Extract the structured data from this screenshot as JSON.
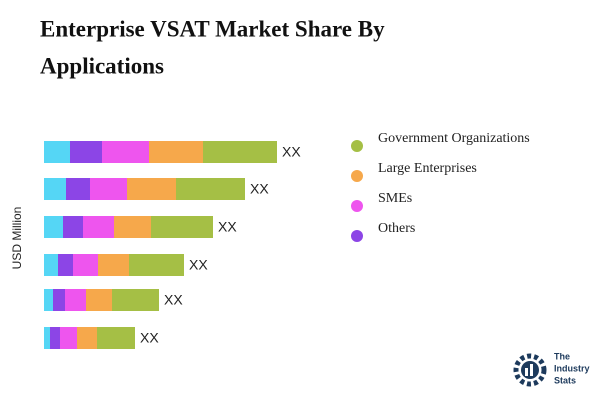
{
  "chart_data": {
    "type": "stacked-bar-horizontal",
    "title": [
      "Enterprise VSAT Market Share By",
      "Applications"
    ],
    "y_label": "USD Million",
    "categories": [
      null,
      null,
      null,
      null,
      null,
      null
    ],
    "xlim": [
      0,
      240
    ],
    "series": [
      {
        "color": "#55d6f5",
        "values": [
          26,
          22,
          19,
          14,
          9,
          6
        ]
      },
      {
        "name": "Others",
        "color": "#8c45e6",
        "values": [
          32,
          24,
          20,
          15,
          12,
          10
        ]
      },
      {
        "name": "SMEs",
        "color": "#ee55ee",
        "values": [
          47,
          37,
          31,
          25,
          21,
          17
        ]
      },
      {
        "name": "Large Enterprises",
        "color": "#f6a84b",
        "values": [
          54,
          49,
          37,
          31,
          26,
          20
        ]
      },
      {
        "name": "Government Organizations",
        "color": "#a5bf45",
        "values": [
          74,
          69,
          62,
          55,
          47,
          38
        ]
      }
    ],
    "total_labels": [
      "XX",
      "XX",
      "XX",
      "XX",
      "XX",
      "XX"
    ]
  },
  "logo_text": [
    "The",
    "Industry",
    "Stats"
  ]
}
